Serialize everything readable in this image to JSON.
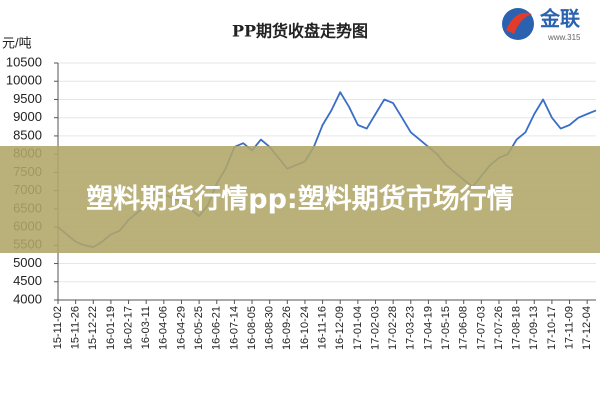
{
  "chart_data": {
    "type": "line",
    "title": "PP期货收盘走势图",
    "y_label": "元/吨",
    "categories": [
      "15-11-02",
      null,
      "15-11-26",
      null,
      "15-12-22",
      null,
      "16-01-19",
      null,
      "16-02-17",
      null,
      "16-03-11",
      null,
      "16-04-06",
      null,
      "16-04-29",
      null,
      "16-05-25",
      null,
      "16-06-21",
      null,
      "16-07-14",
      null,
      "16-08-05",
      null,
      "16-08-30",
      null,
      "16-09-26",
      null,
      "16-10-24",
      null,
      "16-11-16",
      null,
      "16-12-09",
      null,
      "17-01-04",
      null,
      "17-02-03",
      null,
      "17-02-28",
      null,
      "17-03-23",
      null,
      "17-04-19",
      null,
      "17-05-15",
      null,
      "17-06-08",
      null,
      "17-07-03",
      null,
      "17-07-26",
      null,
      "17-08-18",
      null,
      "17-09-13",
      null,
      "17-10-17",
      null,
      "17-11-09",
      null,
      "17-12-04",
      null
    ],
    "series": [
      {
        "name": "PP",
        "color": "#3a6ec8",
        "values": [
          6000,
          5800,
          5600,
          5500,
          5450,
          5600,
          5800,
          5900,
          6200,
          6400,
          6600,
          7000,
          6900,
          6800,
          6700,
          6500,
          6300,
          6600,
          7200,
          7600,
          8200,
          8300,
          8100,
          8400,
          8200,
          7900,
          7600,
          7700,
          7800,
          8200,
          8800,
          9200,
          9700,
          9300,
          8800,
          8700,
          9100,
          9500,
          9400,
          9000,
          8600,
          8400,
          8200,
          8000,
          7700,
          7500,
          7300,
          7100,
          7400,
          7700,
          7900,
          8000,
          8400,
          8600,
          9100,
          9500,
          9000,
          8700,
          8800,
          9000,
          9100,
          9200
        ]
      }
    ],
    "ylim": [
      4000,
      10500
    ],
    "yticks": [
      4000,
      4500,
      5000,
      5500,
      6000,
      6500,
      7000,
      7500,
      8000,
      8500,
      9000,
      9500,
      10000,
      10500
    ],
    "grid": true
  },
  "logo": {
    "name": "金联",
    "url": "www.315"
  },
  "banner": {
    "text": "塑料期货行情pp:塑料期货市场行情"
  }
}
